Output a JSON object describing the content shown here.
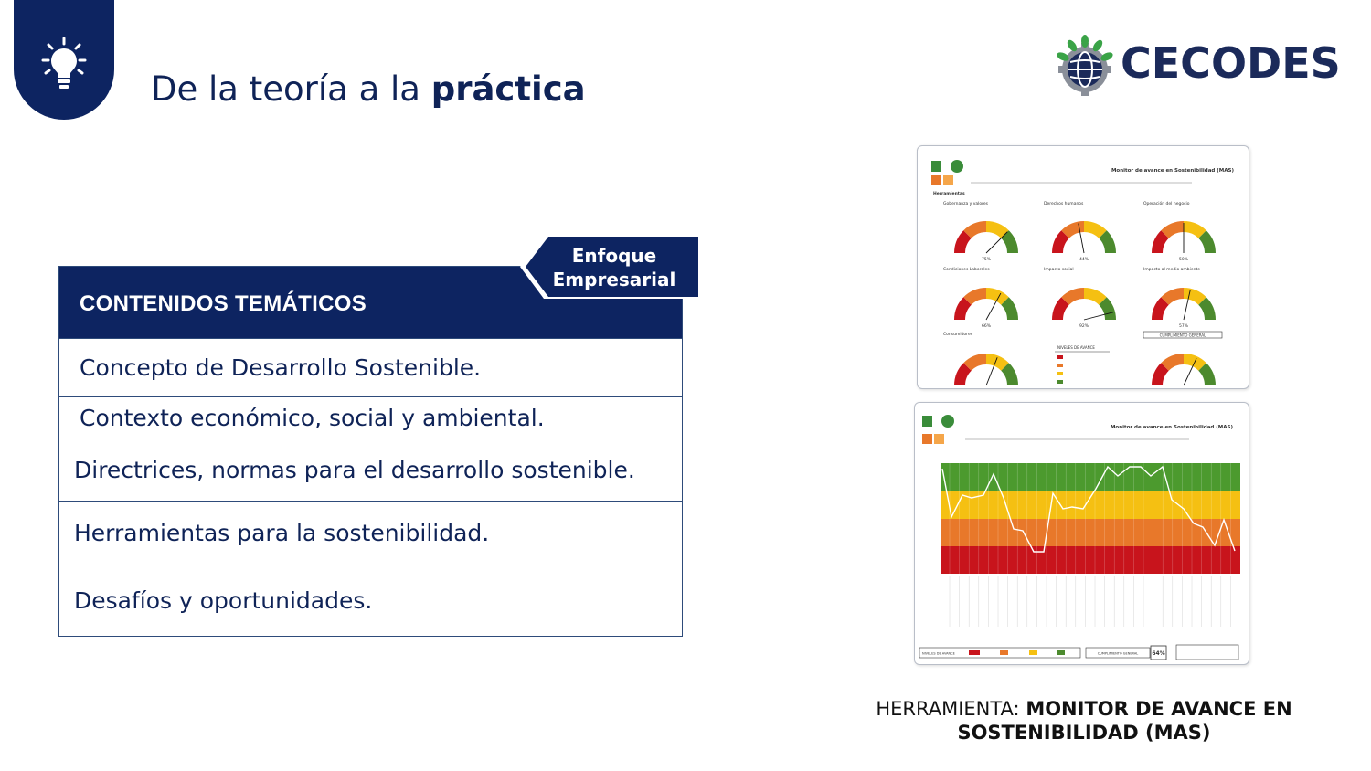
{
  "header": {
    "title_regular": "De la teoría a la ",
    "title_bold": "práctica",
    "logo_text": "CECODES",
    "icon": "lightbulb-icon"
  },
  "tag": {
    "line1": "Enfoque",
    "line2": "Empresarial"
  },
  "contents_table": {
    "heading": "CONTENIDOS TEMÁTICOS",
    "rows": [
      "Concepto de Desarrollo Sostenible.",
      "Contexto económico, social y ambiental.",
      "Directrices, normas para el desarrollo sostenible.",
      "Herramientas para la sostenibilidad.",
      "Desafíos y oportunidades."
    ]
  },
  "tool_preview": {
    "report_title": "Monitor de avance en Sostenibilidad (MAS)",
    "gauges": [
      {
        "label": "Gobernanza y valores",
        "value": "75%"
      },
      {
        "label": "Derechos humanos",
        "value": "44%"
      },
      {
        "label": "Operación del negocio",
        "value": "50%"
      },
      {
        "label": "Condiciones Laborales",
        "value": "66%"
      },
      {
        "label": "Impacto social",
        "value": "92%"
      },
      {
        "label": "Impacto al medio ambiente",
        "value": "57%"
      },
      {
        "label": "Consumidores",
        "value": "62%"
      }
    ],
    "general_label": "CUMPLIMIENTO GENERAL",
    "general_value": "64%",
    "levels_label": "NIVELES DE AVANCE",
    "colors": {
      "red": "#c8141c",
      "orange": "#e8782a",
      "yellow": "#f5c012",
      "green": "#4c8a2e"
    }
  },
  "caption": {
    "prefix": "HERRAMIENTA: ",
    "bold": "MONITOR DE AVANCE EN SOSTENIBILIDAD (MAS)"
  }
}
